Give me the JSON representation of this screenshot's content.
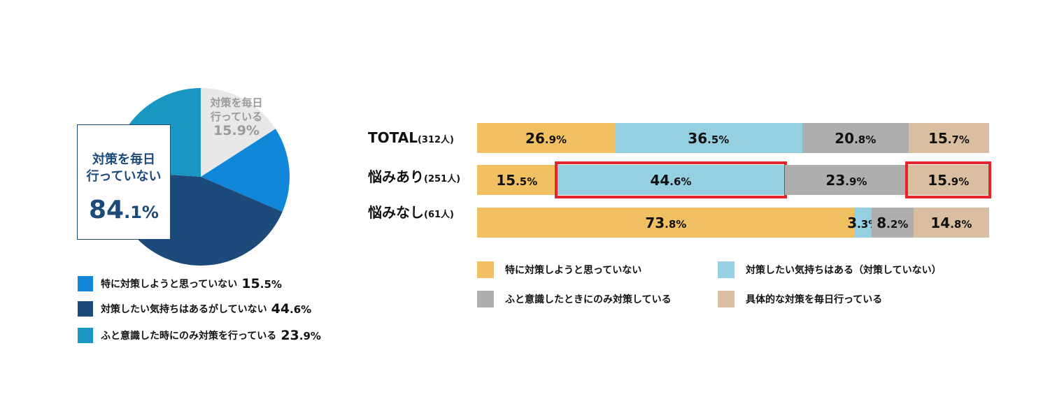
{
  "colors": {
    "pie_daily": "#e8e8e8",
    "pie_no_plan": "#1187d9",
    "pie_want": "#1c4a7a",
    "pie_occasional": "#1897c3",
    "bar_no_plan": "#f0c062",
    "bar_want": "#94cfe2",
    "bar_occasional": "#aeaeae",
    "bar_daily": "#d9bea0",
    "highlight": "#e3262b"
  },
  "pie": {
    "callout": {
      "line1": "対策を毎日",
      "line2": "行っていない",
      "value": "84.1%"
    },
    "daily_label": {
      "line1": "対策を毎日",
      "line2": "行っている",
      "value": "15.9%"
    },
    "legend": [
      {
        "label": "特に対策しようと思っていない",
        "value": "15.5%"
      },
      {
        "label": "対策したい気持ちはあるがしていない",
        "value": "44.6%"
      },
      {
        "label": "ふと意識した時にのみ対策を行っている",
        "value": "23.9%"
      }
    ]
  },
  "bars": {
    "rows": [
      {
        "name": "TOTAL",
        "n": "(312人)"
      },
      {
        "name": "悩みあり",
        "n": "(251人)"
      },
      {
        "name": "悩みなし",
        "n": "(61人)"
      }
    ],
    "legend": [
      {
        "label": "特に対策しようと思っていない"
      },
      {
        "label": "対策したい気持ちはある（対策していない）"
      },
      {
        "label": "ふと意識したときにのみ対策している"
      },
      {
        "label": "具体的な対策を毎日行っている"
      }
    ]
  },
  "chart_data": [
    {
      "type": "pie",
      "categories": [
        "対策を毎日行っている",
        "特に対策しようと思っていない",
        "対策したい気持ちはあるがしていない",
        "ふと意識した時にのみ対策を行っている"
      ],
      "values": [
        15.9,
        15.5,
        44.6,
        23.9
      ],
      "annotations": [
        "対策を毎日行っていない 84.1%"
      ]
    },
    {
      "type": "bar",
      "stacked": true,
      "orientation": "horizontal",
      "categories": [
        "TOTAL (312人)",
        "悩みあり (251人)",
        "悩みなし (61人)"
      ],
      "series": [
        {
          "name": "特に対策しようと思っていない",
          "values": [
            26.9,
            15.5,
            73.8
          ]
        },
        {
          "name": "対策したい気持ちはある（対策していない）",
          "values": [
            36.5,
            44.6,
            3.3
          ]
        },
        {
          "name": "ふと意識したときにのみ対策している",
          "values": [
            20.8,
            23.9,
            8.2
          ]
        },
        {
          "name": "具体的な対策を毎日行っている",
          "values": [
            15.7,
            15.9,
            14.8
          ]
        }
      ],
      "highlighted": [
        {
          "row": 1,
          "series": 1
        },
        {
          "row": 1,
          "series": 3
        }
      ],
      "legend": "bottom",
      "grid": false
    }
  ]
}
